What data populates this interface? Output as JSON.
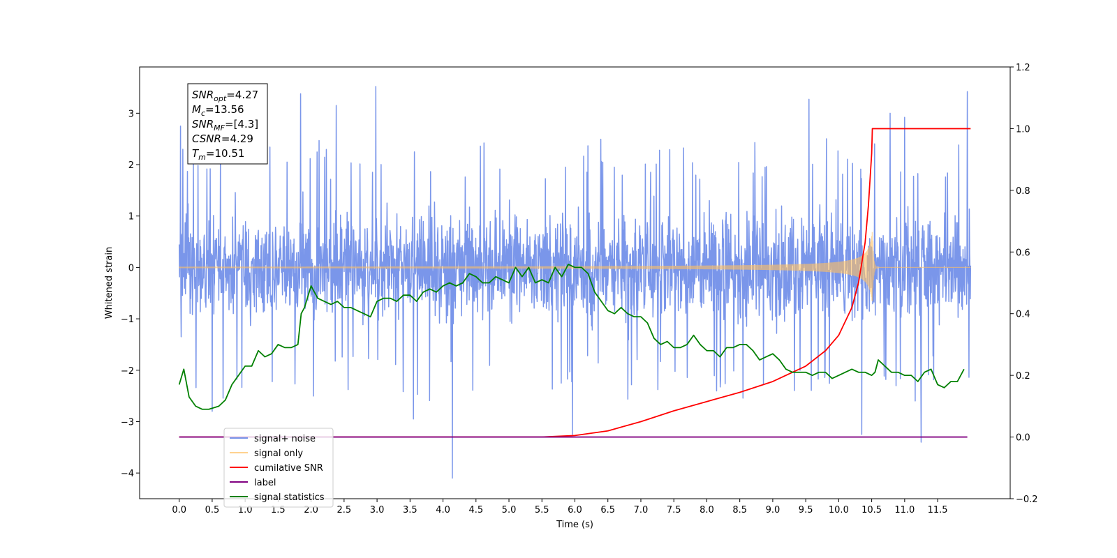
{
  "chart_data": {
    "type": "line",
    "xlabel": "Time (s)",
    "ylabel": "Whitened strain",
    "xlim": [
      -0.6,
      12.6
    ],
    "ylim": [
      -4.5,
      3.9
    ],
    "y2lim": [
      -0.2,
      1.2
    ],
    "x_ticks": [
      "0.0",
      "0.5",
      "1.0",
      "1.5",
      "2.0",
      "2.5",
      "3.0",
      "3.5",
      "4.0",
      "4.5",
      "5.0",
      "5.5",
      "6.0",
      "6.5",
      "7.0",
      "7.5",
      "8.0",
      "8.5",
      "9.0",
      "9.5",
      "10.0",
      "10.5",
      "11.0",
      "11.5"
    ],
    "y_ticks": [
      "−4",
      "−3",
      "−2",
      "−1",
      "0",
      "1",
      "2",
      "3"
    ],
    "y2_ticks": [
      "−0.2",
      "0.0",
      "0.2",
      "0.4",
      "0.6",
      "0.8",
      "1.0",
      "1.2"
    ],
    "legend_position": "lower-left",
    "annotation": {
      "lines": [
        {
          "sym": "SNR",
          "sub": "opt",
          "val": "=4.27"
        },
        {
          "sym": "M",
          "sub": "c",
          "val": "=13.56"
        },
        {
          "sym": "SNR",
          "sub": "MF",
          "val": "=[4.3]"
        },
        {
          "sym": "CSNR",
          "sub": "",
          "val": "=4.29"
        },
        {
          "sym": "T",
          "sub": "m",
          "val": "=10.51"
        }
      ]
    },
    "series": [
      {
        "name": "signal+ noise",
        "color": "#4169e1",
        "axis": "left",
        "kind": "noise",
        "x_range": [
          0.0,
          12.0
        ],
        "envelope_low": -1.6,
        "envelope_high": 1.6,
        "spikes": [
          {
            "x": 0.02,
            "y": 2.75
          },
          {
            "x": 0.03,
            "y": -1.35
          },
          {
            "x": 1.84,
            "y": 3.38
          },
          {
            "x": 2.38,
            "y": 3.15
          },
          {
            "x": 2.98,
            "y": 3.52
          },
          {
            "x": 4.14,
            "y": -4.1
          },
          {
            "x": 5.96,
            "y": -3.25
          },
          {
            "x": 9.55,
            "y": 3.27
          },
          {
            "x": 10.35,
            "y": -3.25
          },
          {
            "x": 10.78,
            "y": 3.0
          },
          {
            "x": 11.0,
            "y": 2.92
          },
          {
            "x": 11.25,
            "y": -3.4
          },
          {
            "x": 11.95,
            "y": 3.42
          },
          {
            "x": 0.5,
            "y": -2.8
          },
          {
            "x": 3.55,
            "y": -2.95
          }
        ]
      },
      {
        "name": "signal only",
        "color": "#ffbf60",
        "axis": "left",
        "kind": "chirp",
        "x_range": [
          0.0,
          12.0
        ],
        "merger": 10.51,
        "peak_amplitude": 0.72
      },
      {
        "name": "cumilative SNR",
        "color": "#ff0000",
        "axis": "right",
        "x": [
          0.0,
          5.5,
          6.0,
          6.5,
          7.0,
          7.5,
          8.0,
          8.5,
          9.0,
          9.5,
          9.8,
          10.0,
          10.2,
          10.3,
          10.4,
          10.45,
          10.5,
          10.51,
          12.0
        ],
        "y": [
          0.0,
          0.0,
          0.005,
          0.02,
          0.05,
          0.085,
          0.115,
          0.145,
          0.18,
          0.23,
          0.28,
          0.33,
          0.42,
          0.5,
          0.63,
          0.75,
          0.92,
          1.0,
          1.0
        ]
      },
      {
        "name": "label",
        "color": "#800080",
        "axis": "right",
        "x": [
          0.0,
          11.95
        ],
        "y": [
          0.0,
          0.0
        ]
      },
      {
        "name": "signal statistics",
        "color": "#008000",
        "axis": "right",
        "x": [
          0.0,
          0.07,
          0.15,
          0.25,
          0.35,
          0.45,
          0.6,
          0.7,
          0.8,
          0.9,
          1.0,
          1.1,
          1.2,
          1.3,
          1.4,
          1.5,
          1.6,
          1.7,
          1.8,
          1.85,
          1.9,
          2.0,
          2.1,
          2.2,
          2.3,
          2.4,
          2.5,
          2.6,
          2.7,
          2.8,
          2.9,
          3.0,
          3.1,
          3.2,
          3.3,
          3.4,
          3.5,
          3.6,
          3.7,
          3.8,
          3.9,
          4.0,
          4.1,
          4.2,
          4.3,
          4.4,
          4.5,
          4.6,
          4.7,
          4.8,
          4.9,
          5.0,
          5.1,
          5.2,
          5.3,
          5.4,
          5.5,
          5.6,
          5.7,
          5.8,
          5.9,
          6.0,
          6.1,
          6.2,
          6.3,
          6.4,
          6.5,
          6.6,
          6.7,
          6.8,
          6.9,
          7.0,
          7.1,
          7.2,
          7.3,
          7.4,
          7.5,
          7.6,
          7.7,
          7.8,
          7.9,
          8.0,
          8.1,
          8.2,
          8.3,
          8.4,
          8.5,
          8.6,
          8.7,
          8.8,
          8.9,
          9.0,
          9.1,
          9.2,
          9.3,
          9.4,
          9.5,
          9.6,
          9.7,
          9.8,
          9.9,
          10.0,
          10.1,
          10.2,
          10.3,
          10.4,
          10.5,
          10.55,
          10.6,
          10.7,
          10.8,
          10.9,
          11.0,
          11.1,
          11.2,
          11.3,
          11.4,
          11.5,
          11.6,
          11.7,
          11.8,
          11.9
        ],
        "y": [
          0.17,
          0.22,
          0.13,
          0.1,
          0.09,
          0.09,
          0.1,
          0.12,
          0.17,
          0.2,
          0.23,
          0.23,
          0.28,
          0.26,
          0.27,
          0.3,
          0.29,
          0.29,
          0.3,
          0.4,
          0.42,
          0.49,
          0.45,
          0.44,
          0.43,
          0.44,
          0.42,
          0.42,
          0.41,
          0.4,
          0.39,
          0.44,
          0.45,
          0.45,
          0.44,
          0.46,
          0.46,
          0.44,
          0.47,
          0.48,
          0.47,
          0.49,
          0.5,
          0.49,
          0.5,
          0.53,
          0.52,
          0.5,
          0.5,
          0.52,
          0.51,
          0.5,
          0.55,
          0.52,
          0.55,
          0.5,
          0.51,
          0.5,
          0.55,
          0.52,
          0.56,
          0.55,
          0.55,
          0.53,
          0.47,
          0.44,
          0.41,
          0.4,
          0.42,
          0.4,
          0.39,
          0.39,
          0.37,
          0.32,
          0.3,
          0.31,
          0.29,
          0.29,
          0.3,
          0.33,
          0.3,
          0.28,
          0.28,
          0.26,
          0.29,
          0.29,
          0.3,
          0.3,
          0.28,
          0.25,
          0.26,
          0.27,
          0.25,
          0.22,
          0.21,
          0.21,
          0.21,
          0.2,
          0.21,
          0.21,
          0.19,
          0.2,
          0.21,
          0.22,
          0.21,
          0.21,
          0.2,
          0.21,
          0.25,
          0.23,
          0.21,
          0.21,
          0.2,
          0.2,
          0.18,
          0.21,
          0.22,
          0.17,
          0.16,
          0.18,
          0.18,
          0.22
        ]
      }
    ]
  }
}
